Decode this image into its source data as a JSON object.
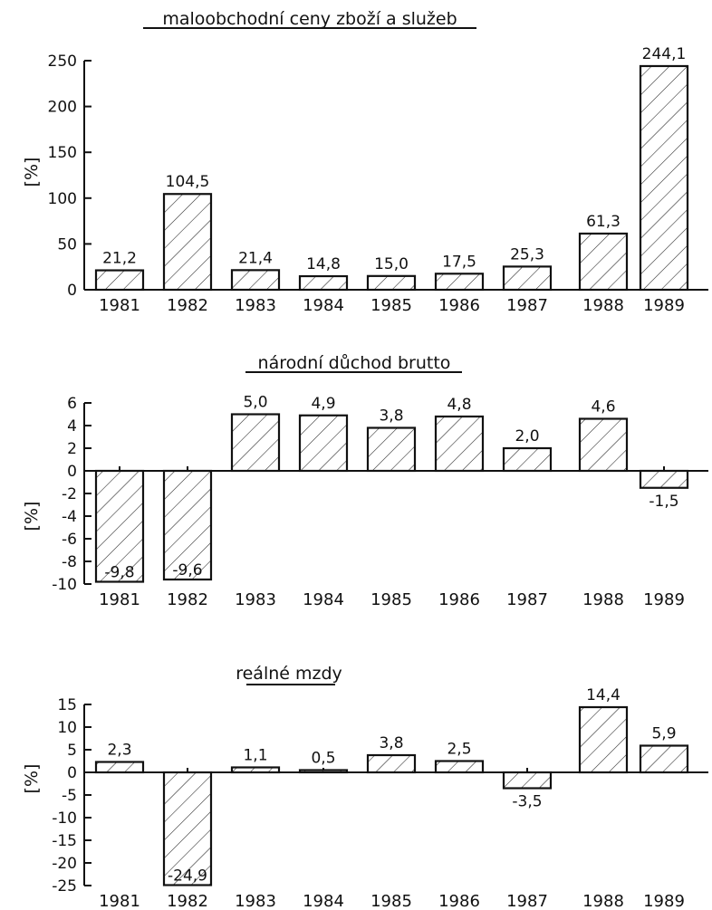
{
  "chart_data": [
    {
      "type": "bar",
      "title": "maloobchodní ceny zboží a služeb",
      "ylabel": "[%]",
      "ylim": [
        0,
        250
      ],
      "yticks": [
        "250",
        "200",
        "150",
        "100",
        "50",
        "0"
      ],
      "categories": [
        "1981",
        "1982",
        "1983",
        "1984",
        "1985",
        "1986",
        "1987",
        "1988",
        "1989"
      ],
      "values": [
        21.2,
        104.5,
        21.4,
        14.8,
        15.0,
        17.5,
        25.3,
        61.3,
        244.1
      ],
      "value_labels": [
        "21,2",
        "104,5",
        "21,4",
        "14,8",
        "15,0",
        "17,5",
        "25,3",
        "61,3",
        "244,1"
      ],
      "grid": false
    },
    {
      "type": "bar",
      "title": "národní důchod brutto",
      "ylabel": "[%]",
      "ylim": [
        -10,
        6
      ],
      "yticks": [
        "6",
        "4",
        "2",
        "0",
        "-2",
        "-4",
        "-6",
        "-8",
        "-10"
      ],
      "categories": [
        "1981",
        "1982",
        "1983",
        "1984",
        "1985",
        "1986",
        "1987",
        "1988",
        "1989"
      ],
      "values": [
        -9.8,
        -9.6,
        5.0,
        4.9,
        3.8,
        4.8,
        2.0,
        4.6,
        -1.5
      ],
      "value_labels": [
        "-9,8",
        "-9,6",
        "5,0",
        "4,9",
        "3,8",
        "4,8",
        "2,0",
        "4,6",
        "-1,5"
      ],
      "grid": false
    },
    {
      "type": "bar",
      "title": "reálné mzdy",
      "ylabel": "[%]",
      "ylim": [
        -25,
        15
      ],
      "yticks": [
        "15",
        "10",
        "5",
        "0",
        "-5",
        "-10",
        "-15",
        "-20",
        "-25"
      ],
      "categories": [
        "1981",
        "1982",
        "1983",
        "1984",
        "1985",
        "1986",
        "1987",
        "1988",
        "1989"
      ],
      "values": [
        2.3,
        -24.9,
        1.1,
        0.5,
        3.8,
        2.5,
        -3.5,
        14.4,
        5.9
      ],
      "value_labels": [
        "2,3",
        "-24,9",
        "1,1",
        "0,5",
        "3,8",
        "2,5",
        "-3,5",
        "14,4",
        "5,9"
      ],
      "grid": false
    }
  ]
}
